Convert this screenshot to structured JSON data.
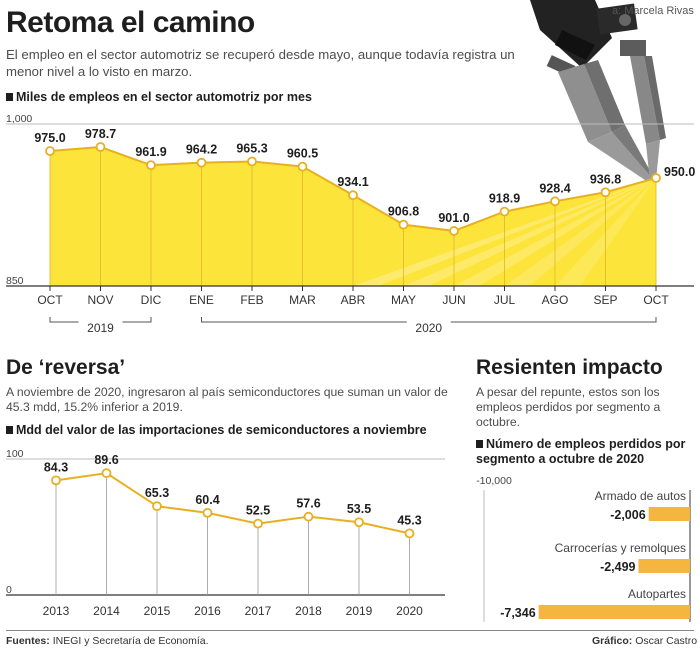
{
  "header": {
    "title": "Retoma el camino",
    "credit": "a: Marcela Rivas",
    "lede": "El empleo en el sector automotriz se recuperó desde mayo, aunque todavía registra un menor nivel a lo visto en marzo."
  },
  "colors": {
    "fill": "#fde43a",
    "line": "#e8b020",
    "bar": "#f4b63f",
    "dark": "#1e1e1e",
    "robot": "#8a8a8a"
  },
  "chart_data": [
    {
      "type": "area",
      "title": "Miles de empleos en el sector automotriz por mes",
      "categories": [
        "OCT",
        "NOV",
        "DIC",
        "ENE",
        "FEB",
        "MAR",
        "ABR",
        "MAY",
        "JUN",
        "JUL",
        "AGO",
        "SEP",
        "OCT"
      ],
      "values": [
        975.0,
        978.7,
        961.9,
        964.2,
        965.3,
        960.5,
        934.1,
        906.8,
        901.0,
        918.9,
        928.4,
        936.8,
        950.0
      ],
      "value_labels": [
        "975.0",
        "978.7",
        "961.9",
        "964.2",
        "965.3",
        "960.5",
        "934.1",
        "906.8",
        "901.0",
        "918.9",
        "928.4",
        "936.8",
        "950.0"
      ],
      "ylim": [
        850,
        1000
      ],
      "y_tick_labels": [
        "1,000",
        "850"
      ],
      "year_groups": [
        {
          "label": "2019",
          "from": 0,
          "to": 2
        },
        {
          "label": "2020",
          "from": 3,
          "to": 12
        }
      ]
    },
    {
      "type": "line",
      "title": "Mdd del valor de las importaciones de semiconductores a noviembre",
      "categories": [
        "2013",
        "2014",
        "2015",
        "2016",
        "2017",
        "2018",
        "2019",
        "2020"
      ],
      "values": [
        84.3,
        89.6,
        65.3,
        60.4,
        52.5,
        57.6,
        53.5,
        45.3
      ],
      "value_labels": [
        "84.3",
        "89.6",
        "65.3",
        "60.4",
        "52.5",
        "57.6",
        "53.5",
        "45.3"
      ],
      "ylim": [
        0,
        100
      ],
      "y_tick_labels": [
        "100",
        "0"
      ]
    },
    {
      "type": "bar",
      "orientation": "horizontal",
      "title": "Número de empleos perdidos por segmento a octubre de 2020",
      "categories": [
        "Armado de autos",
        "Carrocerías y remolques",
        "Autopartes"
      ],
      "values": [
        -2006,
        -2499,
        -7346
      ],
      "value_labels": [
        "-2,006",
        "-2,499",
        "-7,346"
      ],
      "xlim": [
        -10000,
        0
      ],
      "x_tick_labels": [
        "-10,000"
      ]
    }
  ],
  "section2": {
    "title": "De ‘reversa’",
    "text": "A noviembre de 2020, ingresaron al país semiconductores que suman un valor de 45.3 mdd, 15.2% inferior a 2019."
  },
  "section3": {
    "title": "Resienten impacto",
    "text": "A pesar del repunte, estos son los empleos perdidos por segmento a octubre."
  },
  "footer": {
    "sources_label": "Fuentes:",
    "sources": "INEGI y Secretaría de Economía.",
    "graphic_label": "Gráfico:",
    "graphic": "Oscar Castro"
  }
}
